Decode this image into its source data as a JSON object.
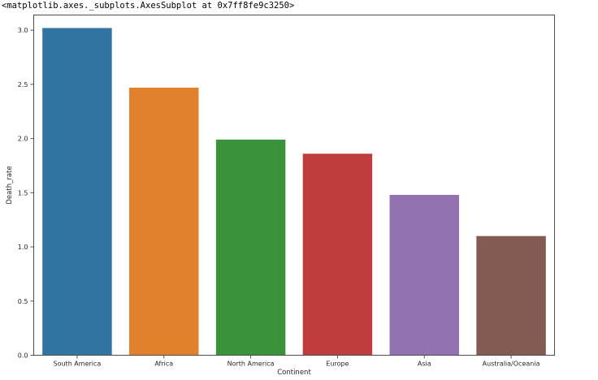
{
  "output_repr": "<matplotlib.axes._subplots.AxesSubplot at 0x7ff8fe9c3250>",
  "chart_data": {
    "type": "bar",
    "categories": [
      "South America",
      "Africa",
      "North America",
      "Europe",
      "Asia",
      "Australia/Oceania"
    ],
    "values": [
      3.02,
      2.47,
      1.99,
      1.86,
      1.48,
      1.1
    ],
    "colors": [
      "#3274a1",
      "#e1812c",
      "#3a923a",
      "#c03d3e",
      "#9372b2",
      "#845b53"
    ],
    "xlabel": "Continent",
    "ylabel": "Death_rate",
    "ylim": [
      0,
      3.14
    ],
    "yticks": [
      0.0,
      0.5,
      1.0,
      1.5,
      2.0,
      2.5,
      3.0
    ],
    "ytick_labels": [
      "0.0",
      "0.5",
      "1.0",
      "1.5",
      "2.0",
      "2.5",
      "3.0"
    ],
    "grid": false,
    "legend": "none"
  }
}
